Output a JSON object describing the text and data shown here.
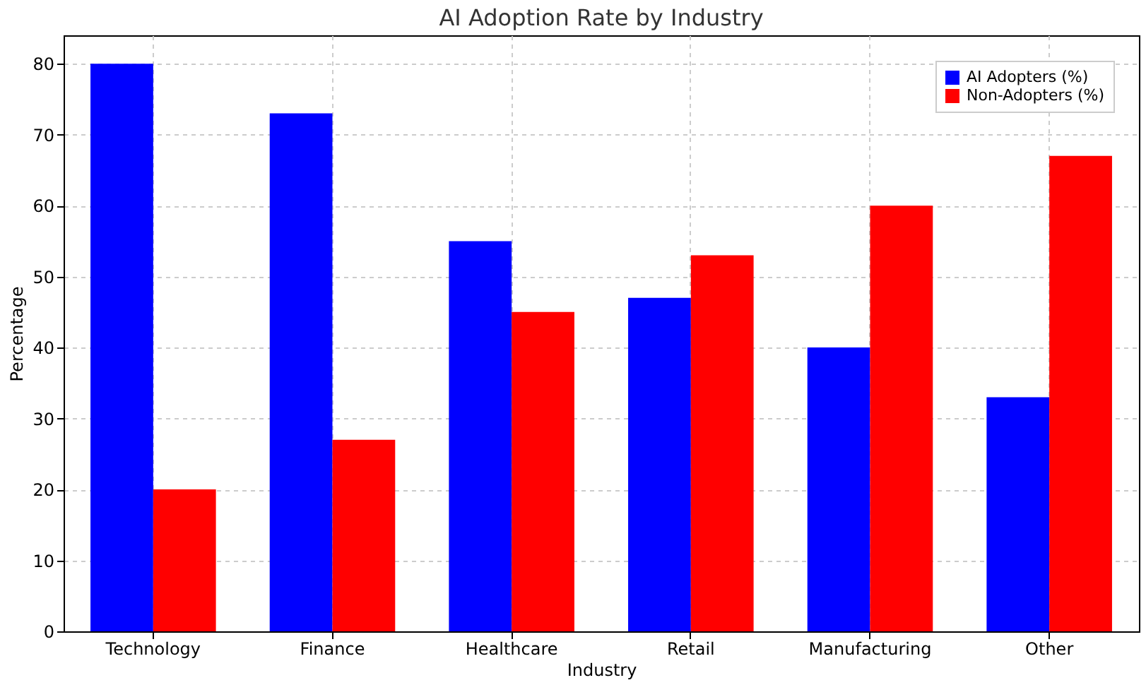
{
  "chart_data": {
    "type": "bar",
    "title": "AI Adoption Rate by Industry",
    "xlabel": "Industry",
    "ylabel": "Percentage",
    "categories": [
      "Technology",
      "Finance",
      "Healthcare",
      "Retail",
      "Manufacturing",
      "Other"
    ],
    "series": [
      {
        "name": "AI Adopters (%)",
        "color": "#0000ff",
        "values": [
          80,
          73,
          55,
          47,
          40,
          33
        ]
      },
      {
        "name": "Non-Adopters (%)",
        "color": "#ff0000",
        "values": [
          20,
          27,
          45,
          53,
          60,
          67
        ]
      }
    ],
    "ylim": [
      0,
      84
    ],
    "yticks": [
      0,
      10,
      20,
      30,
      40,
      50,
      60,
      70,
      80
    ],
    "grid": true,
    "legend": "top right"
  }
}
